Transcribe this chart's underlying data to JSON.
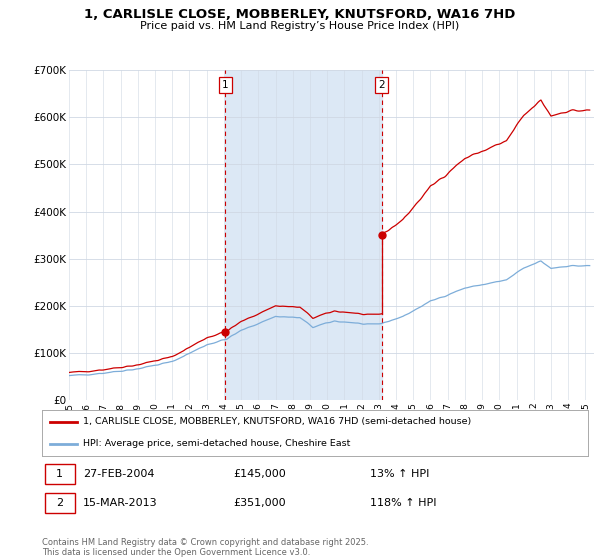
{
  "title": "1, CARLISLE CLOSE, MOBBERLEY, KNUTSFORD, WA16 7HD",
  "subtitle": "Price paid vs. HM Land Registry’s House Price Index (HPI)",
  "xlim_start": 1995.0,
  "xlim_end": 2025.5,
  "ylim": [
    0,
    700000
  ],
  "yticks": [
    0,
    100000,
    200000,
    300000,
    400000,
    500000,
    600000,
    700000
  ],
  "ytick_labels": [
    "£0",
    "£100K",
    "£200K",
    "£300K",
    "£400K",
    "£500K",
    "£600K",
    "£700K"
  ],
  "background_color": "#ffffff",
  "grid_color": "#d0d8e4",
  "shade_color": "#dce8f5",
  "red_color": "#cc0000",
  "blue_color": "#7dadd9",
  "purchase1_year": 2004,
  "purchase1_month": 2,
  "purchase1_y": 145000,
  "purchase2_year": 2013,
  "purchase2_month": 3,
  "purchase2_y": 351000,
  "legend_red": "1, CARLISLE CLOSE, MOBBERLEY, KNUTSFORD, WA16 7HD (semi-detached house)",
  "legend_blue": "HPI: Average price, semi-detached house, Cheshire East",
  "footer_copy": "Contains HM Land Registry data © Crown copyright and database right 2025.\nThis data is licensed under the Open Government Licence v3.0."
}
